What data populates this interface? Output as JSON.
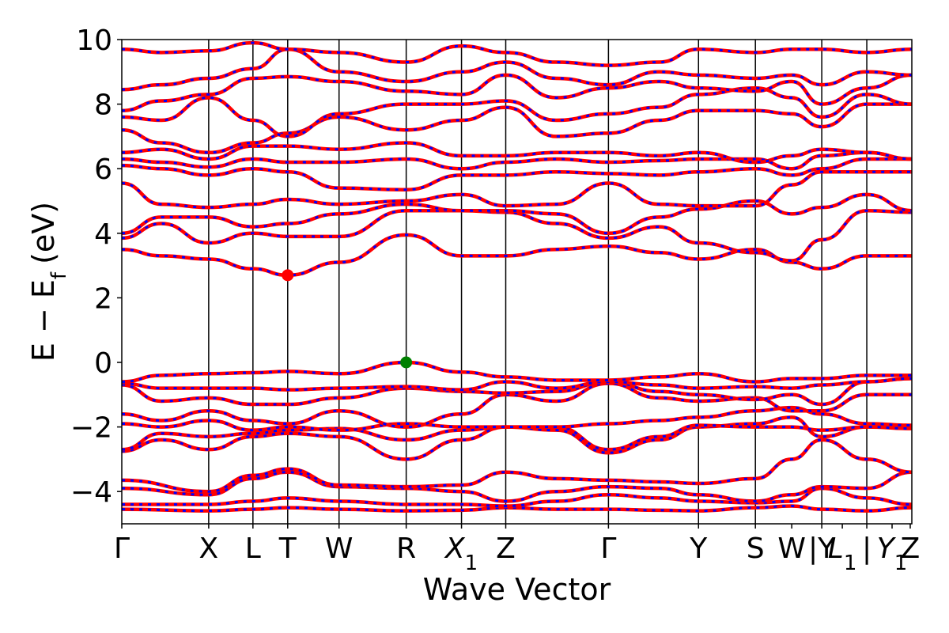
{
  "chart_data": {
    "type": "line",
    "title": "",
    "xlabel": "Wave Vector",
    "ylabel": "E − E",
    "ylabel_sub": "f",
    "ylabel_unit": "(eV)",
    "ylim": [
      -5,
      10
    ],
    "yticks": [
      -4,
      -2,
      0,
      2,
      4,
      6,
      8,
      10
    ],
    "ytick_labels": [
      "−4",
      "−2",
      "0",
      "2",
      "4",
      "6",
      "8",
      "10"
    ],
    "kpath": [
      {
        "label": "Γ",
        "sub": "",
        "x": 0.0
      },
      {
        "label": "X",
        "sub": "",
        "x": 0.11
      },
      {
        "label": "L",
        "sub": "",
        "x": 0.166
      },
      {
        "label": "T",
        "sub": "",
        "x": 0.21
      },
      {
        "label": "W",
        "sub": "",
        "x": 0.275
      },
      {
        "label": "R",
        "sub": "",
        "x": 0.36
      },
      {
        "label": "X",
        "sub": "1",
        "x": 0.43
      },
      {
        "label": "Z",
        "sub": "",
        "x": 0.486
      },
      {
        "label": "Γ",
        "sub": "",
        "x": 0.616
      },
      {
        "label": "Y",
        "sub": "",
        "x": 0.73
      },
      {
        "label": "S",
        "sub": "",
        "x": 0.802
      },
      {
        "label": "W",
        "sub": "",
        "x": 0.848
      },
      {
        "label": "|Y",
        "sub": "",
        "x": 0.886
      },
      {
        "label": "L",
        "sub": "1",
        "x": 0.912
      },
      {
        "label": "|",
        "sub": "",
        "x": 0.943
      },
      {
        "label": "Y",
        "sub": "1",
        "x": 0.975
      },
      {
        "label": "Z",
        "sub": "",
        "x": 0.998
      }
    ],
    "kpath_lines": [
      0.11,
      0.166,
      0.21,
      0.275,
      0.36,
      0.43,
      0.486,
      0.616,
      0.73,
      0.802,
      0.886,
      0.943
    ],
    "xlim": [
      0,
      1.0
    ],
    "series_colors": {
      "red": "#ff0000",
      "blue": "#0000ff"
    },
    "markers": [
      {
        "name": "cbm",
        "x": 0.21,
        "y": 2.7,
        "color": "#ff0000"
      },
      {
        "name": "vbm",
        "x": 0.36,
        "y": 0.0,
        "color": "#008000"
      }
    ],
    "bands": [
      {
        "x": [
          0,
          0.11,
          0.166,
          0.21,
          0.275,
          0.36,
          0.43,
          0.486,
          0.55,
          0.616,
          0.68,
          0.73,
          0.802,
          0.848,
          0.886,
          0.943,
          1.0
        ],
        "y": [
          -4.55,
          -4.6,
          -4.55,
          -4.5,
          -4.55,
          -4.6,
          -4.58,
          -4.5,
          -4.55,
          -4.55,
          -4.58,
          -4.6,
          -4.5,
          -4.45,
          -4.55,
          -4.6,
          -4.5
        ]
      },
      {
        "x": [
          0,
          0.11,
          0.166,
          0.21,
          0.275,
          0.36,
          0.43,
          0.486,
          0.55,
          0.616,
          0.68,
          0.73,
          0.802,
          0.848,
          0.886,
          0.943,
          1.0
        ],
        "y": [
          -4.4,
          -4.4,
          -4.3,
          -4.2,
          -4.3,
          -4.4,
          -4.4,
          -4.45,
          -4.3,
          -4.1,
          -4.2,
          -4.3,
          -4.35,
          -4.3,
          -3.9,
          -4.2,
          -4.4
        ]
      },
      {
        "x": [
          0,
          0.11,
          0.166,
          0.21,
          0.275,
          0.36,
          0.43,
          0.486,
          0.55,
          0.616,
          0.68,
          0.73,
          0.802,
          0.848,
          0.886,
          0.943,
          1.0
        ],
        "y": [
          -3.9,
          -4.1,
          -3.6,
          -3.4,
          -3.85,
          -3.9,
          -4.0,
          -4.3,
          -4.0,
          -3.85,
          -3.9,
          -4.1,
          -4.3,
          -4.1,
          -3.85,
          -3.9,
          -3.4
        ]
      },
      {
        "x": [
          0,
          0.11,
          0.166,
          0.21,
          0.275,
          0.36,
          0.43,
          0.486,
          0.55,
          0.616,
          0.68,
          0.73,
          0.802,
          0.848,
          0.886,
          0.943,
          1.0
        ],
        "y": [
          -3.65,
          -4.0,
          -3.5,
          -3.3,
          -3.8,
          -3.85,
          -3.8,
          -3.4,
          -3.6,
          -3.65,
          -3.7,
          -3.75,
          -3.6,
          -3.0,
          -2.4,
          -3.0,
          -3.4
        ]
      },
      {
        "x": [
          0,
          0.05,
          0.11,
          0.166,
          0.21,
          0.275,
          0.36,
          0.43,
          0.486,
          0.55,
          0.616,
          0.68,
          0.73,
          0.802,
          0.848,
          0.886,
          0.943,
          1.0
        ],
        "y": [
          -2.75,
          -2.4,
          -2.7,
          -2.3,
          -2.2,
          -2.3,
          -3.0,
          -2.4,
          -2.0,
          -2.1,
          -2.8,
          -2.4,
          -2.0,
          -1.9,
          -1.7,
          -2.3,
          -2.0,
          -2.0
        ]
      },
      {
        "x": [
          0,
          0.05,
          0.11,
          0.166,
          0.21,
          0.275,
          0.36,
          0.43,
          0.486,
          0.55,
          0.616,
          0.68,
          0.73,
          0.802,
          0.848,
          0.886,
          0.943,
          1.0
        ],
        "y": [
          -2.7,
          -2.2,
          -2.3,
          -2.2,
          -2.1,
          -2.05,
          -2.4,
          -2.1,
          -2.0,
          -2.0,
          -2.7,
          -2.3,
          -1.95,
          -2.0,
          -2.0,
          -2.1,
          -2.0,
          -2.05
        ]
      },
      {
        "x": [
          0,
          0.05,
          0.11,
          0.166,
          0.21,
          0.275,
          0.36,
          0.43,
          0.486,
          0.55,
          0.616,
          0.68,
          0.73,
          0.802,
          0.848,
          0.886,
          0.943,
          1.0
        ],
        "y": [
          -1.9,
          -2.0,
          -1.8,
          -2.1,
          -2.0,
          -2.1,
          -1.9,
          -2.0,
          -2.0,
          -2.0,
          -1.9,
          -1.8,
          -1.7,
          -1.5,
          -1.4,
          -1.6,
          -1.9,
          -1.95
        ]
      },
      {
        "x": [
          0,
          0.05,
          0.11,
          0.166,
          0.21,
          0.275,
          0.36,
          0.43,
          0.486,
          0.55,
          0.616,
          0.68,
          0.73,
          0.802,
          0.848,
          0.886,
          0.943,
          1.0
        ],
        "y": [
          -1.6,
          -1.8,
          -1.5,
          -1.8,
          -1.9,
          -1.5,
          -2.0,
          -1.6,
          -1.0,
          -1.2,
          -0.65,
          -1.1,
          -1.2,
          -1.1,
          -1.5,
          -1.5,
          -1.0,
          -1.0
        ]
      },
      {
        "x": [
          0,
          0.05,
          0.11,
          0.166,
          0.21,
          0.275,
          0.36,
          0.43,
          0.486,
          0.55,
          0.616,
          0.68,
          0.73,
          0.802,
          0.848,
          0.886,
          0.943,
          1.0
        ],
        "y": [
          -0.7,
          -1.2,
          -1.1,
          -1.3,
          -1.3,
          -1.1,
          -0.8,
          -0.9,
          -0.95,
          -0.9,
          -0.6,
          -0.9,
          -1.0,
          -1.15,
          -1.0,
          -1.3,
          -0.6,
          -0.5
        ]
      },
      {
        "x": [
          0,
          0.05,
          0.11,
          0.166,
          0.21,
          0.275,
          0.36,
          0.43,
          0.486,
          0.55,
          0.616,
          0.68,
          0.73,
          0.802,
          0.848,
          0.886,
          0.943,
          1.0
        ],
        "y": [
          -0.65,
          -0.8,
          -0.8,
          -0.8,
          -0.85,
          -0.8,
          -0.75,
          -0.85,
          -0.6,
          -0.8,
          -0.6,
          -0.7,
          -0.8,
          -0.75,
          -0.8,
          -0.7,
          -0.6,
          -0.5
        ]
      },
      {
        "x": [
          0,
          0.05,
          0.11,
          0.166,
          0.21,
          0.275,
          0.36,
          0.43,
          0.486,
          0.55,
          0.616,
          0.68,
          0.73,
          0.802,
          0.848,
          0.886,
          0.943,
          1.0
        ],
        "y": [
          -0.6,
          -0.4,
          -0.35,
          -0.32,
          -0.28,
          -0.35,
          0.0,
          -0.3,
          -0.45,
          -0.55,
          -0.55,
          -0.45,
          -0.35,
          -0.6,
          -0.5,
          -0.5,
          -0.4,
          -0.4
        ]
      },
      {
        "x": [
          0,
          0.05,
          0.11,
          0.166,
          0.21,
          0.275,
          0.36,
          0.43,
          0.486,
          0.55,
          0.616,
          0.68,
          0.73,
          0.802,
          0.848,
          0.886,
          0.943,
          1.0
        ],
        "y": [
          3.5,
          3.3,
          3.2,
          2.9,
          2.7,
          3.1,
          3.95,
          3.3,
          3.3,
          3.5,
          3.6,
          3.4,
          3.2,
          3.5,
          3.1,
          2.9,
          3.3,
          3.3
        ]
      },
      {
        "x": [
          0,
          0.05,
          0.11,
          0.166,
          0.21,
          0.275,
          0.36,
          0.43,
          0.486,
          0.55,
          0.616,
          0.68,
          0.73,
          0.802,
          0.848,
          0.886,
          0.943,
          1.0
        ],
        "y": [
          3.85,
          4.3,
          3.7,
          4.0,
          3.9,
          3.9,
          4.7,
          4.7,
          4.65,
          4.3,
          3.85,
          4.2,
          3.7,
          3.4,
          3.15,
          3.8,
          4.7,
          4.65
        ]
      },
      {
        "x": [
          0,
          0.05,
          0.11,
          0.166,
          0.21,
          0.275,
          0.36,
          0.43,
          0.486,
          0.55,
          0.616,
          0.68,
          0.73,
          0.802,
          0.848,
          0.886,
          0.943,
          1.0
        ],
        "y": [
          4.0,
          4.5,
          4.5,
          4.2,
          4.3,
          4.6,
          4.9,
          4.7,
          4.7,
          4.6,
          4.0,
          4.5,
          4.75,
          5.0,
          4.6,
          4.8,
          5.2,
          4.7
        ]
      },
      {
        "x": [
          0,
          0.05,
          0.11,
          0.166,
          0.21,
          0.275,
          0.36,
          0.43,
          0.486,
          0.55,
          0.616,
          0.68,
          0.73,
          0.802,
          0.848,
          0.886,
          0.943,
          1.0
        ],
        "y": [
          5.55,
          4.9,
          4.8,
          4.9,
          5.05,
          4.9,
          5.0,
          5.2,
          4.85,
          4.9,
          5.55,
          4.9,
          4.85,
          4.85,
          5.5,
          5.9,
          5.9,
          5.9
        ]
      },
      {
        "x": [
          0,
          0.05,
          0.11,
          0.166,
          0.21,
          0.275,
          0.36,
          0.43,
          0.486,
          0.55,
          0.616,
          0.68,
          0.73,
          0.802,
          0.848,
          0.886,
          0.943,
          1.0
        ],
        "y": [
          6.1,
          6.0,
          5.8,
          6.0,
          5.9,
          5.4,
          5.35,
          5.8,
          5.8,
          5.9,
          5.85,
          5.8,
          5.9,
          6.0,
          5.8,
          6.0,
          6.3,
          6.3
        ]
      },
      {
        "x": [
          0,
          0.05,
          0.11,
          0.166,
          0.21,
          0.275,
          0.36,
          0.43,
          0.486,
          0.55,
          0.616,
          0.68,
          0.73,
          0.802,
          0.848,
          0.886,
          0.943,
          1.0
        ],
        "y": [
          6.3,
          6.2,
          6.05,
          6.3,
          6.2,
          6.2,
          6.3,
          6.0,
          6.2,
          6.3,
          6.2,
          6.25,
          6.3,
          6.3,
          6.0,
          6.4,
          6.5,
          6.3
        ]
      },
      {
        "x": [
          0,
          0.05,
          0.11,
          0.166,
          0.21,
          0.275,
          0.36,
          0.43,
          0.486,
          0.55,
          0.616,
          0.68,
          0.73,
          0.802,
          0.848,
          0.886,
          0.943,
          1.0
        ],
        "y": [
          6.5,
          6.6,
          6.3,
          6.7,
          6.7,
          6.6,
          6.8,
          6.4,
          6.4,
          6.5,
          6.5,
          6.4,
          6.5,
          6.2,
          6.4,
          6.6,
          6.5,
          6.3
        ]
      },
      {
        "x": [
          0,
          0.05,
          0.11,
          0.166,
          0.21,
          0.275,
          0.36,
          0.43,
          0.486,
          0.55,
          0.616,
          0.68,
          0.73,
          0.802,
          0.848,
          0.886,
          0.943,
          1.0
        ],
        "y": [
          7.2,
          6.8,
          6.5,
          6.8,
          7.1,
          7.6,
          7.2,
          7.5,
          7.9,
          7.0,
          7.1,
          7.5,
          7.8,
          7.8,
          7.7,
          7.3,
          8.0,
          8.0
        ]
      },
      {
        "x": [
          0,
          0.05,
          0.11,
          0.166,
          0.21,
          0.275,
          0.36,
          0.43,
          0.486,
          0.55,
          0.616,
          0.68,
          0.73,
          0.802,
          0.848,
          0.886,
          0.943,
          1.0
        ],
        "y": [
          7.6,
          7.5,
          8.2,
          7.5,
          7.0,
          7.7,
          8.0,
          8.0,
          8.1,
          7.5,
          7.7,
          7.9,
          8.3,
          8.5,
          8.2,
          7.6,
          8.3,
          8.0
        ]
      },
      {
        "x": [
          0,
          0.05,
          0.11,
          0.166,
          0.21,
          0.275,
          0.36,
          0.43,
          0.486,
          0.55,
          0.616,
          0.68,
          0.73,
          0.802,
          0.848,
          0.886,
          0.943,
          1.0
        ],
        "y": [
          7.8,
          8.1,
          8.3,
          8.8,
          8.85,
          8.7,
          8.4,
          8.3,
          8.9,
          8.2,
          8.5,
          8.7,
          8.5,
          8.4,
          8.7,
          8.0,
          8.5,
          8.9
        ]
      },
      {
        "x": [
          0,
          0.05,
          0.11,
          0.166,
          0.21,
          0.275,
          0.36,
          0.43,
          0.486,
          0.55,
          0.616,
          0.68,
          0.73,
          0.802,
          0.848,
          0.886,
          0.943,
          1.0
        ],
        "y": [
          8.45,
          8.6,
          8.8,
          9.1,
          9.7,
          9.0,
          8.7,
          9.0,
          9.3,
          8.8,
          8.6,
          9.0,
          8.9,
          8.8,
          8.9,
          8.6,
          9.0,
          8.9
        ]
      },
      {
        "x": [
          0,
          0.05,
          0.11,
          0.166,
          0.21,
          0.275,
          0.36,
          0.43,
          0.486,
          0.55,
          0.616,
          0.68,
          0.73,
          0.802,
          0.848,
          0.886,
          0.943,
          1.0
        ],
        "y": [
          9.7,
          9.6,
          9.65,
          9.9,
          9.7,
          9.6,
          9.3,
          9.8,
          9.6,
          9.3,
          9.2,
          9.3,
          9.7,
          9.6,
          9.7,
          9.7,
          9.6,
          9.7
        ]
      }
    ]
  }
}
